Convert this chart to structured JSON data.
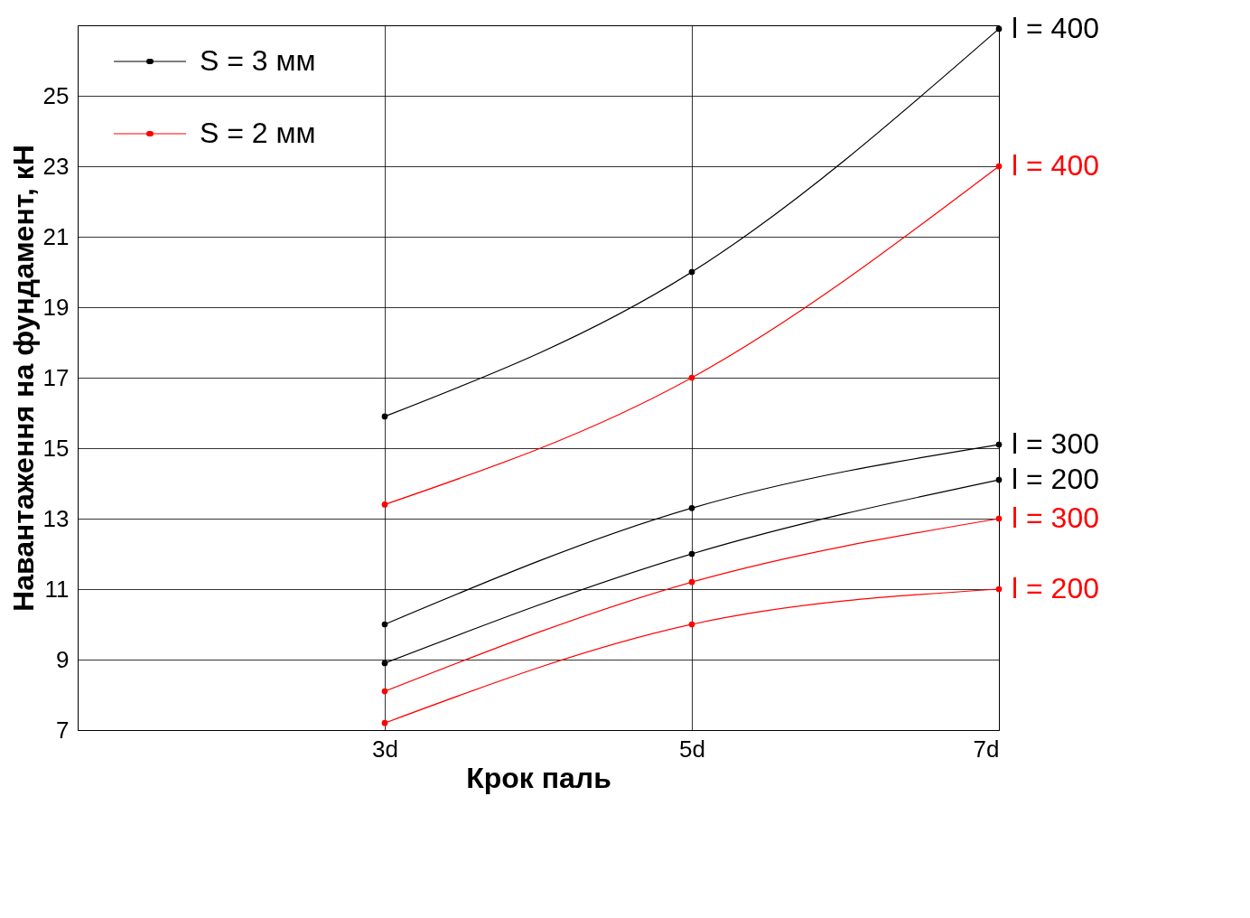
{
  "chart_data": {
    "type": "line",
    "xlabel": "Крок паль",
    "ylabel": "Навантаження на фундамент, кН",
    "categories": [
      "3d",
      "5d",
      "7d"
    ],
    "series": [
      {
        "name": "l = 400",
        "color": "#000000",
        "values": [
          15.9,
          20.0,
          26.9
        ]
      },
      {
        "name": "l = 300",
        "color": "#000000",
        "values": [
          10.0,
          13.3,
          15.1
        ]
      },
      {
        "name": "l = 200",
        "color": "#000000",
        "values": [
          8.9,
          12.0,
          14.1
        ]
      },
      {
        "name": "l = 400",
        "color": "#ff0000",
        "values": [
          13.4,
          17.0,
          23.0
        ]
      },
      {
        "name": "l = 300",
        "color": "#ff0000",
        "values": [
          8.1,
          11.2,
          13.0
        ]
      },
      {
        "name": "l = 200",
        "color": "#ff0000",
        "values": [
          7.2,
          10.0,
          11.0
        ]
      }
    ],
    "annotations": [
      "S = 3 мм",
      "S = 2 мм"
    ],
    "ylim": [
      7,
      27
    ],
    "yticks": [
      7,
      9,
      11,
      13,
      15,
      17,
      19,
      21,
      23,
      25
    ],
    "grid": true,
    "marker": "circle",
    "line_style": "solid"
  }
}
